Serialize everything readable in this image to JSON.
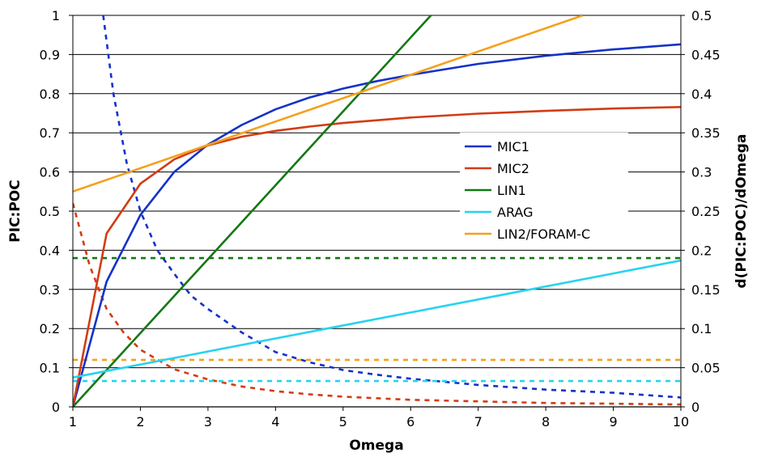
{
  "chart_data": {
    "type": "line",
    "xlabel": "Omega",
    "ylabel": "PIC:POC",
    "y2label": "d(PIC:POC)/dOmega",
    "xlim": [
      1,
      10
    ],
    "ylim": [
      0,
      1
    ],
    "y2lim": [
      0,
      0.5
    ],
    "x_ticks": [
      "1",
      "2",
      "3",
      "4",
      "5",
      "6",
      "7",
      "8",
      "9",
      "10"
    ],
    "y_ticks": [
      "0",
      "0.1",
      "0.2",
      "0.3",
      "0.4",
      "0.5",
      "0.6",
      "0.7",
      "0.8",
      "0.9",
      "1"
    ],
    "y2_ticks": [
      "0",
      "0.05",
      "0.1",
      "0.15",
      "0.2",
      "0.25",
      "0.3",
      "0.35",
      "0.4",
      "0.45",
      "0.5"
    ],
    "grid": "horizontal",
    "legend_position": "right",
    "series": [
      {
        "name": "MIC1",
        "color": "#1432C8",
        "axis": "left",
        "style": "solid",
        "x": [
          1,
          1.5,
          2,
          2.5,
          3,
          3.5,
          4,
          4.5,
          5,
          5.5,
          6,
          7,
          8,
          9,
          10
        ],
        "y": [
          0,
          0.32,
          0.49,
          0.6,
          0.67,
          0.72,
          0.76,
          0.79,
          0.813,
          0.832,
          0.848,
          0.876,
          0.897,
          0.913,
          0.926
        ]
      },
      {
        "name": "MIC2",
        "color": "#D23C14",
        "axis": "left",
        "style": "solid",
        "x": [
          1,
          1.5,
          2,
          2.5,
          3,
          3.5,
          4,
          4.5,
          5,
          6,
          7,
          8,
          9,
          10
        ],
        "y": [
          0,
          0.443,
          0.57,
          0.632,
          0.668,
          0.69,
          0.705,
          0.716,
          0.725,
          0.739,
          0.749,
          0.756,
          0.762,
          0.766
        ]
      },
      {
        "name": "LIN1",
        "color": "#147814",
        "axis": "left",
        "style": "solid",
        "x": [
          1,
          6.3
        ],
        "y": [
          0,
          1
        ]
      },
      {
        "name": "ARAG",
        "color": "#28D2F0",
        "axis": "left",
        "style": "solid",
        "x": [
          1,
          10
        ],
        "y": [
          0.075,
          0.374
        ]
      },
      {
        "name": "LIN2/FORAM-C",
        "color": "#F5A01E",
        "axis": "left",
        "style": "solid",
        "x": [
          1,
          8.55
        ],
        "y": [
          0.55,
          1
        ]
      },
      {
        "name": "",
        "color": "#1432C8",
        "axis": "right",
        "style": "dashed",
        "x": [
          1.45,
          1.6,
          1.8,
          2,
          2.25,
          2.5,
          2.75,
          3,
          3.5,
          4,
          4.5,
          5,
          5.5,
          6,
          7,
          8,
          9,
          10
        ],
        "y": [
          0.5,
          0.4,
          0.31,
          0.25,
          0.2,
          0.17,
          0.142,
          0.125,
          0.095,
          0.07,
          0.057,
          0.047,
          0.041,
          0.036,
          0.028,
          0.022,
          0.018,
          0.012
        ]
      },
      {
        "name": "",
        "color": "#D23C14",
        "axis": "right",
        "style": "dashed",
        "x": [
          1,
          1.25,
          1.5,
          1.75,
          2,
          2.5,
          3,
          3.5,
          4,
          4.5,
          5,
          6,
          7,
          8,
          9,
          10
        ],
        "y": [
          0.26,
          0.18,
          0.125,
          0.095,
          0.073,
          0.048,
          0.035,
          0.026,
          0.02,
          0.016,
          0.013,
          0.009,
          0.007,
          0.005,
          0.004,
          0.003
        ]
      },
      {
        "name": "",
        "color": "#147814",
        "axis": "right",
        "style": "dashed",
        "x": [
          1,
          10
        ],
        "y": [
          0.19,
          0.19
        ]
      },
      {
        "name": "",
        "color": "#28D2F0",
        "axis": "right",
        "style": "dashed",
        "x": [
          1,
          10
        ],
        "y": [
          0.033,
          0.033
        ]
      },
      {
        "name": "",
        "color": "#F5A01E",
        "axis": "right",
        "style": "dashed",
        "x": [
          1,
          10
        ],
        "y": [
          0.06,
          0.06
        ]
      }
    ]
  }
}
